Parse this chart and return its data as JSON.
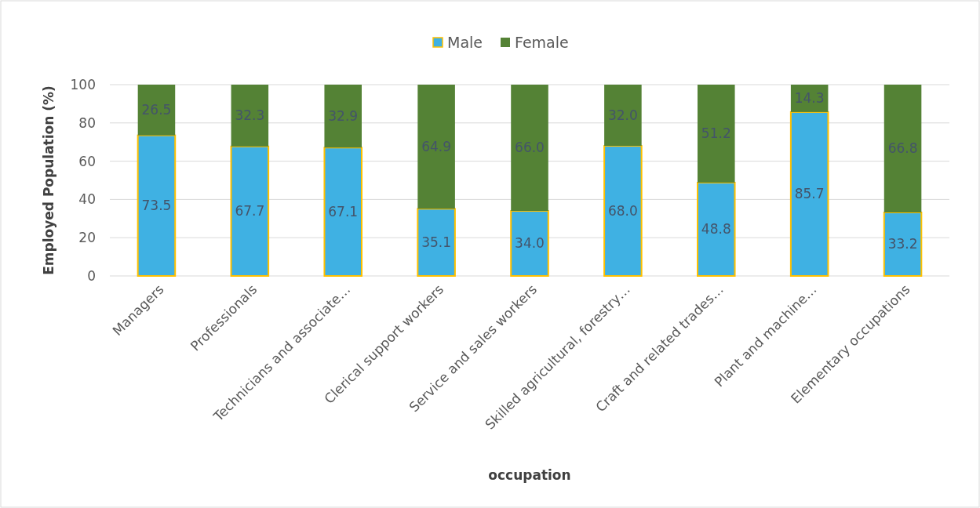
{
  "chart_data": {
    "type": "bar",
    "stacked": true,
    "xlabel": "occupation",
    "ylabel": "Employed  Population (%)",
    "categories": [
      "Managers",
      "Professionals",
      "Technicians and associate…",
      "Clerical support workers",
      "Service and sales workers",
      "Skilled agricultural, forestry…",
      "Craft and related trades…",
      "Plant and machine…",
      "Elementary occupations"
    ],
    "series": [
      {
        "name": "Male",
        "color": "#3fb1e3",
        "values": [
          73.5,
          67.7,
          67.1,
          35.1,
          34.0,
          68.0,
          48.8,
          85.7,
          33.2
        ],
        "value_labels": [
          "73.5",
          "67.7",
          "67.1",
          "35.1",
          "34.0",
          "68.0",
          "48.8",
          "85.7",
          "33.2"
        ]
      },
      {
        "name": "Female",
        "color": "#548235",
        "values": [
          26.5,
          32.3,
          32.9,
          64.9,
          66.0,
          32.0,
          51.2,
          14.3,
          66.8
        ],
        "value_labels": [
          "26.5",
          "32.3",
          "32.9",
          "64.9",
          "66.0",
          "32.0",
          "51.2",
          "14.3",
          "66.8"
        ]
      }
    ],
    "ylim": [
      0,
      100
    ],
    "yticks": [
      0,
      20,
      40,
      60,
      80,
      100
    ],
    "grid": "y",
    "legend": "top"
  }
}
